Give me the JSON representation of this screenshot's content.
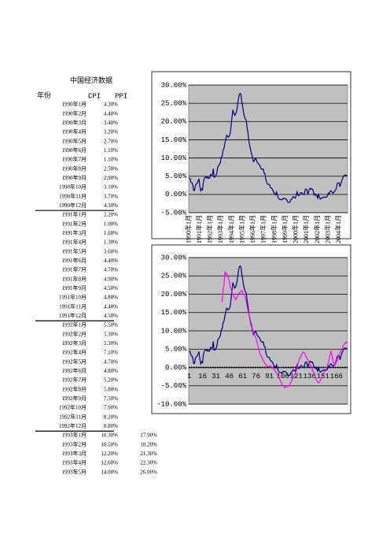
{
  "title": "中国经济数据",
  "table": {
    "header": [
      "年份",
      "CPI",
      "PPI"
    ],
    "rows": [
      [
        "1990年1月",
        "4.30%"
      ],
      [
        "1990年2月",
        "4.40%"
      ],
      [
        "1990年3月",
        "3.40%"
      ],
      [
        "1990年4月",
        "3.20%"
      ],
      [
        "1990年5月",
        "2.70%"
      ],
      [
        "1990年6月",
        "1.10%"
      ],
      [
        "1990年7月",
        "1.10%"
      ],
      [
        "1990年8月",
        "2.50%"
      ],
      [
        "1990年9月",
        "2.90%"
      ],
      [
        "1990年10月",
        "3.10%"
      ],
      [
        "1990年11月",
        "3.70%"
      ],
      [
        "1990年12月",
        "4.30%"
      ],
      [
        "1991年1月",
        "2.20%"
      ],
      [
        "1991年2月",
        "1.00%"
      ],
      [
        "1991年3月",
        "1.60%"
      ],
      [
        "1991年4月",
        "1.30%"
      ],
      [
        "1991年5月",
        "3.60%"
      ],
      [
        "1991年6月",
        "4.40%"
      ],
      [
        "1991年7月",
        "4.70%"
      ],
      [
        "1991年8月",
        "4.90%"
      ],
      [
        "1991年9月",
        "4.50%"
      ],
      [
        "1991年10月",
        "4.80%"
      ],
      [
        "1991年11月",
        "4.40%"
      ],
      [
        "1991年12月",
        "4.50%"
      ],
      [
        "1992年1月",
        "5.50%"
      ],
      [
        "1992年2月",
        "5.30%"
      ],
      [
        "1992年3月",
        "5.30%"
      ],
      [
        "1992年4月",
        "7.10%"
      ],
      [
        "1992年5月",
        "4.70%"
      ],
      [
        "1992年6月",
        "4.80%"
      ],
      [
        "1992年7月",
        "5.20%"
      ],
      [
        "1992年8月",
        "5.80%"
      ],
      [
        "1992年9月",
        "7.50%"
      ],
      [
        "1992年10月",
        "7.90%"
      ],
      [
        "1992年11月",
        "8.20%"
      ],
      [
        "1992年12月",
        "8.80%"
      ],
      [
        "1993年1月",
        "10.30%",
        "17.90%"
      ],
      [
        "1993年2月",
        "10.50%",
        "18.20%"
      ],
      [
        "1993年3月",
        "12.20%",
        "21.30%"
      ],
      [
        "1993年4月",
        "12.60%",
        "22.30%"
      ],
      [
        "1993年5月",
        "14.00%",
        "26.00%"
      ]
    ]
  },
  "chart_data": [
    {
      "type": "line",
      "categories": [
        "1990年1月",
        null,
        null,
        null,
        null,
        null,
        null,
        null,
        null,
        null,
        null,
        null,
        "1991年1月",
        null,
        null,
        null,
        null,
        null,
        null,
        null,
        null,
        null,
        null,
        null,
        "1992年1月",
        null,
        null,
        null,
        null,
        null,
        null,
        null,
        null,
        null,
        null,
        null,
        "1993年1月",
        null,
        null,
        null,
        null,
        null,
        null,
        null,
        null,
        null,
        null,
        null,
        "1994年1月",
        null,
        null,
        null,
        null,
        null,
        null,
        null,
        null,
        null,
        null,
        null,
        "1995年1月",
        null,
        null,
        null,
        null,
        null,
        null,
        null,
        null,
        null,
        null,
        null,
        "1996年1月",
        null,
        null,
        null,
        null,
        null,
        null,
        null,
        null,
        null,
        null,
        null,
        "1997年1月",
        null,
        null,
        null,
        null,
        null,
        null,
        null,
        null,
        null,
        null,
        null,
        "1998年1月",
        null,
        null,
        null,
        null,
        null,
        null,
        null,
        null,
        null,
        null,
        null,
        "1999年1月",
        null,
        null,
        null,
        null,
        null,
        null,
        null,
        null,
        null,
        null,
        null,
        "2000年1月",
        null,
        null,
        null,
        null,
        null,
        null,
        null,
        null,
        null,
        null,
        null,
        "2001年1月",
        null,
        null,
        null,
        null,
        null,
        null,
        null,
        null,
        null,
        null,
        null,
        "2002年1月",
        null,
        null,
        null,
        null,
        null,
        null,
        null,
        null,
        null,
        null,
        null,
        "2003年1月",
        null,
        null,
        null,
        null,
        null,
        null,
        null,
        null,
        null,
        null,
        null,
        "2004年1月",
        null,
        null,
        null,
        null,
        null,
        null,
        null,
        null,
        null
      ],
      "series": [
        {
          "color": "#000080",
          "values": [
            4.3,
            4.4,
            3.4,
            3.2,
            2.7,
            1.1,
            1.1,
            2.5,
            2.9,
            3.1,
            3.7,
            4.3,
            2.2,
            1.0,
            1.6,
            1.3,
            3.6,
            4.4,
            4.7,
            4.9,
            4.5,
            4.8,
            4.4,
            4.5,
            5.5,
            5.3,
            5.3,
            7.1,
            4.7,
            4.8,
            5.2,
            5.8,
            7.5,
            7.9,
            8.2,
            8.8,
            10.3,
            10.5,
            12.2,
            12.6,
            14.0,
            15.1,
            16.2,
            16.0,
            15.7,
            16.1,
            16.7,
            18.8,
            21.1,
            23.2,
            22.4,
            21.7,
            22.0,
            22.6,
            24.0,
            25.8,
            27.3,
            27.7,
            27.5,
            25.5,
            24.1,
            22.4,
            21.3,
            20.7,
            20.3,
            18.2,
            16.7,
            14.5,
            13.2,
            12.1,
            11.2,
            10.1,
            9.0,
            9.3,
            9.8,
            9.7,
            8.9,
            8.6,
            8.3,
            8.1,
            7.4,
            7.0,
            6.9,
            7.0,
            5.9,
            5.6,
            4.0,
            3.2,
            2.8,
            2.8,
            2.7,
            1.9,
            1.8,
            1.5,
            1.1,
            0.4,
            0.3,
            -0.1,
            0.7,
            -0.3,
            -1.0,
            -1.3,
            -1.4,
            -1.4,
            -1.5,
            -1.1,
            -1.2,
            -1.0,
            -1.2,
            -1.3,
            -1.8,
            -2.2,
            -2.2,
            -2.1,
            -1.4,
            -1.3,
            -0.8,
            -0.6,
            -0.9,
            -1.0,
            -0.2,
            0.7,
            -0.2,
            -0.3,
            0.1,
            0.5,
            0.5,
            0.3,
            0.0,
            0.0,
            1.3,
            1.5,
            1.2,
            0.0,
            0.8,
            1.6,
            1.7,
            1.4,
            1.5,
            1.0,
            -0.1,
            0.2,
            -0.3,
            -0.3,
            -1.0,
            0.0,
            -0.8,
            -1.3,
            -1.1,
            -0.8,
            -0.9,
            -0.7,
            -0.7,
            -0.8,
            -0.7,
            -0.4,
            0.4,
            0.2,
            0.9,
            1.0,
            0.7,
            0.3,
            0.5,
            0.9,
            1.1,
            1.8,
            3.0,
            3.2,
            3.2,
            2.1,
            3.0,
            3.8,
            4.4,
            5.0,
            5.3,
            5.3,
            5.2,
            5.3
          ]
        }
      ],
      "ylim": [
        -5,
        30
      ],
      "yticks": [
        {
          "value": -5,
          "label": "-5.00%"
        },
        {
          "value": 0,
          "label": "0.00%"
        },
        {
          "value": 5,
          "label": "5.00%"
        },
        {
          "value": 10,
          "label": "10.00%"
        },
        {
          "value": 15,
          "label": "15.00%"
        },
        {
          "value": 20,
          "label": "20.00%"
        },
        {
          "value": 25,
          "label": "25.00%"
        },
        {
          "value": 30,
          "label": "30.00%"
        }
      ],
      "grid": true
    },
    {
      "type": "line",
      "categories": [
        1,
        null,
        null,
        null,
        null,
        null,
        null,
        null,
        null,
        null,
        null,
        null,
        null,
        null,
        null,
        16,
        null,
        null,
        null,
        null,
        null,
        null,
        null,
        null,
        null,
        null,
        null,
        null,
        null,
        null,
        31,
        null,
        null,
        null,
        null,
        null,
        null,
        null,
        null,
        null,
        null,
        null,
        null,
        null,
        null,
        46,
        null,
        null,
        null,
        null,
        null,
        null,
        null,
        null,
        null,
        null,
        null,
        null,
        null,
        null,
        61,
        null,
        null,
        null,
        null,
        null,
        null,
        null,
        null,
        null,
        null,
        null,
        null,
        null,
        null,
        76,
        null,
        null,
        null,
        null,
        null,
        null,
        null,
        null,
        null,
        null,
        null,
        null,
        null,
        null,
        91,
        null,
        null,
        null,
        null,
        null,
        null,
        null,
        null,
        null,
        null,
        null,
        null,
        null,
        null,
        106,
        null,
        null,
        null,
        null,
        null,
        null,
        null,
        null,
        null,
        null,
        null,
        null,
        null,
        null,
        121,
        null,
        null,
        null,
        null,
        null,
        null,
        null,
        null,
        null,
        null,
        null,
        null,
        null,
        null,
        136,
        null,
        null,
        null,
        null,
        null,
        null,
        null,
        null,
        null,
        null,
        null,
        null,
        null,
        null,
        151,
        null,
        null,
        null,
        null,
        null,
        null,
        null,
        null,
        null,
        null,
        null,
        null,
        null,
        null,
        166,
        null,
        null,
        null,
        null,
        null,
        null,
        null,
        null,
        null,
        null,
        null,
        null
      ],
      "series": [
        {
          "color": "#000080",
          "values": [
            4.3,
            4.4,
            3.4,
            3.2,
            2.7,
            1.1,
            1.1,
            2.5,
            2.9,
            3.1,
            3.7,
            4.3,
            2.2,
            1.0,
            1.6,
            1.3,
            3.6,
            4.4,
            4.7,
            4.9,
            4.5,
            4.8,
            4.4,
            4.5,
            5.5,
            5.3,
            5.3,
            7.1,
            4.7,
            4.8,
            5.2,
            5.8,
            7.5,
            7.9,
            8.2,
            8.8,
            10.3,
            10.5,
            12.2,
            12.6,
            14.0,
            15.1,
            16.2,
            16.0,
            15.7,
            16.1,
            16.7,
            18.8,
            21.1,
            23.2,
            22.4,
            21.7,
            22.0,
            22.6,
            24.0,
            25.8,
            27.3,
            27.7,
            27.5,
            25.5,
            24.1,
            22.4,
            21.3,
            20.7,
            20.3,
            18.2,
            16.7,
            14.5,
            13.2,
            12.1,
            11.2,
            10.1,
            9.0,
            9.3,
            9.8,
            9.7,
            8.9,
            8.6,
            8.3,
            8.1,
            7.4,
            7.0,
            6.9,
            7.0,
            5.9,
            5.6,
            4.0,
            3.2,
            2.8,
            2.8,
            2.7,
            1.9,
            1.8,
            1.5,
            1.1,
            0.4,
            0.3,
            -0.1,
            0.7,
            -0.3,
            -1.0,
            -1.3,
            -1.4,
            -1.4,
            -1.5,
            -1.1,
            -1.2,
            -1.0,
            -1.2,
            -1.3,
            -1.8,
            -2.2,
            -2.2,
            -2.1,
            -1.4,
            -1.3,
            -0.8,
            -0.6,
            -0.9,
            -1.0,
            -0.2,
            0.7,
            -0.2,
            -0.3,
            0.1,
            0.5,
            0.5,
            0.3,
            0.0,
            0.0,
            1.3,
            1.5,
            1.2,
            0.0,
            0.8,
            1.6,
            1.7,
            1.4,
            1.5,
            1.0,
            -0.1,
            0.2,
            -0.3,
            -0.3,
            -1.0,
            0.0,
            -0.8,
            -1.3,
            -1.1,
            -0.8,
            -0.9,
            -0.7,
            -0.7,
            -0.8,
            -0.7,
            -0.4,
            0.4,
            0.2,
            0.9,
            1.0,
            0.7,
            0.3,
            0.5,
            0.9,
            1.1,
            1.8,
            3.0,
            3.2,
            3.2,
            2.1,
            3.0,
            3.8,
            4.4,
            5.0,
            5.3,
            5.3,
            5.2,
            5.3
          ]
        },
        {
          "color": "#ff00ff",
          "values": [
            null,
            null,
            null,
            null,
            null,
            null,
            null,
            null,
            null,
            null,
            null,
            null,
            null,
            null,
            null,
            null,
            null,
            null,
            null,
            null,
            null,
            null,
            null,
            null,
            null,
            null,
            null,
            null,
            null,
            null,
            null,
            null,
            null,
            null,
            null,
            null,
            17.9,
            18.2,
            21.3,
            22.3,
            26.0,
            25.5,
            25.8,
            24.8,
            24.6,
            23.5,
            22.0,
            21.5,
            20.5,
            20.0,
            19.5,
            19.0,
            18.5,
            18.8,
            19.5,
            20.0,
            20.3,
            20.5,
            20.8,
            21.0,
            20.5,
            20.2,
            19.8,
            19.0,
            18.0,
            16.5,
            15.5,
            14.5,
            13.5,
            12.5,
            11.8,
            10.5,
            9.5,
            9.0,
            8.5,
            8.0,
            7.0,
            6.0,
            5.0,
            4.0,
            3.5,
            3.0,
            2.5,
            2.0,
            1.5,
            1.0,
            0.8,
            0.5,
            0.3,
            0.2,
            0.3,
            0.5,
            0.2,
            0.0,
            -0.2,
            -0.5,
            -0.8,
            -1.2,
            -1.5,
            -2.0,
            -2.5,
            -3.0,
            -3.5,
            -4.0,
            -4.5,
            -5.0,
            -5.2,
            -5.5,
            -5.5,
            -5.2,
            -5.0,
            -5.2,
            -5.0,
            -4.5,
            -4.0,
            -3.5,
            -3.0,
            -2.5,
            -2.0,
            -1.5,
            -1.0,
            0.0,
            1.0,
            2.0,
            2.5,
            3.0,
            3.5,
            4.0,
            4.2,
            4.0,
            3.5,
            3.0,
            2.5,
            2.0,
            1.5,
            1.0,
            0.5,
            0.0,
            -0.5,
            -1.0,
            -1.5,
            -2.0,
            -3.0,
            -3.5,
            -4.0,
            -4.2,
            -4.0,
            -3.5,
            -3.0,
            -2.5,
            -2.0,
            -1.5,
            -1.0,
            -0.5,
            0.0,
            0.5,
            1.5,
            2.5,
            3.5,
            4.5,
            3.5,
            2.0,
            1.0,
            0.5,
            1.5,
            2.5,
            2.0,
            3.0,
            3.5,
            4.0,
            4.5,
            5.0,
            5.5,
            6.0,
            6.5,
            6.8,
            7.0,
            6.5
          ]
        }
      ],
      "ylim": [
        -10,
        30
      ],
      "yticks": [
        {
          "value": -10,
          "label": "-10.00%"
        },
        {
          "value": -5,
          "label": "-5.00%"
        },
        {
          "value": 0,
          "label": "0.00%"
        },
        {
          "value": 5,
          "label": "5.00%"
        },
        {
          "value": 10,
          "label": "10.00%"
        },
        {
          "value": 15,
          "label": "15.00%"
        },
        {
          "value": 20,
          "label": "20.00%"
        },
        {
          "value": 25,
          "label": "25.00%"
        },
        {
          "value": 30,
          "label": "30.00%"
        }
      ],
      "grid": true
    }
  ]
}
